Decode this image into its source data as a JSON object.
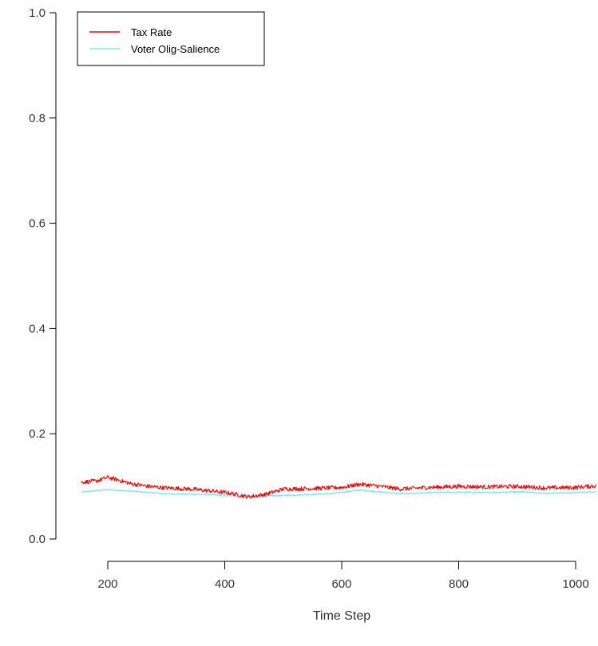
{
  "chart_data": {
    "type": "line",
    "title": "",
    "xlabel": "Time Step",
    "ylabel": "",
    "xlim": [
      150,
      1035
    ],
    "ylim": [
      0,
      1
    ],
    "x_ticks": [
      200,
      400,
      600,
      800,
      1000
    ],
    "x_tick_labels": [
      "200",
      "400",
      "600",
      "800",
      "1000"
    ],
    "y_ticks": [
      0,
      0.2,
      0.4,
      0.6,
      0.8,
      1.0
    ],
    "y_tick_labels": [
      "0.0",
      "0.2",
      "0.4",
      "0.6",
      "0.8",
      "1.0"
    ],
    "grid": false,
    "legend_position": "top-left",
    "x_start": 155,
    "x_end": 1035,
    "series": [
      {
        "name": "Tax Rate",
        "color": "#ff0000",
        "noise": 0.004,
        "points": [
          [
            155,
            0.108
          ],
          [
            180,
            0.11
          ],
          [
            200,
            0.117
          ],
          [
            215,
            0.113
          ],
          [
            240,
            0.105
          ],
          [
            270,
            0.1
          ],
          [
            300,
            0.097
          ],
          [
            340,
            0.095
          ],
          [
            380,
            0.091
          ],
          [
            410,
            0.087
          ],
          [
            440,
            0.08
          ],
          [
            470,
            0.085
          ],
          [
            500,
            0.095
          ],
          [
            550,
            0.096
          ],
          [
            600,
            0.098
          ],
          [
            630,
            0.104
          ],
          [
            660,
            0.101
          ],
          [
            700,
            0.095
          ],
          [
            750,
            0.098
          ],
          [
            800,
            0.1
          ],
          [
            850,
            0.099
          ],
          [
            900,
            0.1
          ],
          [
            950,
            0.097
          ],
          [
            1000,
            0.098
          ],
          [
            1035,
            0.101
          ]
        ]
      },
      {
        "name": "Voter Olig-Salience",
        "color": "#7de8ec",
        "noise": 0.0012,
        "points": [
          [
            155,
            0.089
          ],
          [
            200,
            0.094
          ],
          [
            250,
            0.09
          ],
          [
            300,
            0.086
          ],
          [
            350,
            0.085
          ],
          [
            400,
            0.083
          ],
          [
            440,
            0.081
          ],
          [
            480,
            0.082
          ],
          [
            530,
            0.084
          ],
          [
            580,
            0.086
          ],
          [
            630,
            0.093
          ],
          [
            670,
            0.089
          ],
          [
            700,
            0.086
          ],
          [
            750,
            0.088
          ],
          [
            800,
            0.089
          ],
          [
            850,
            0.088
          ],
          [
            900,
            0.09
          ],
          [
            950,
            0.087
          ],
          [
            1000,
            0.088
          ],
          [
            1035,
            0.09
          ]
        ]
      }
    ]
  }
}
